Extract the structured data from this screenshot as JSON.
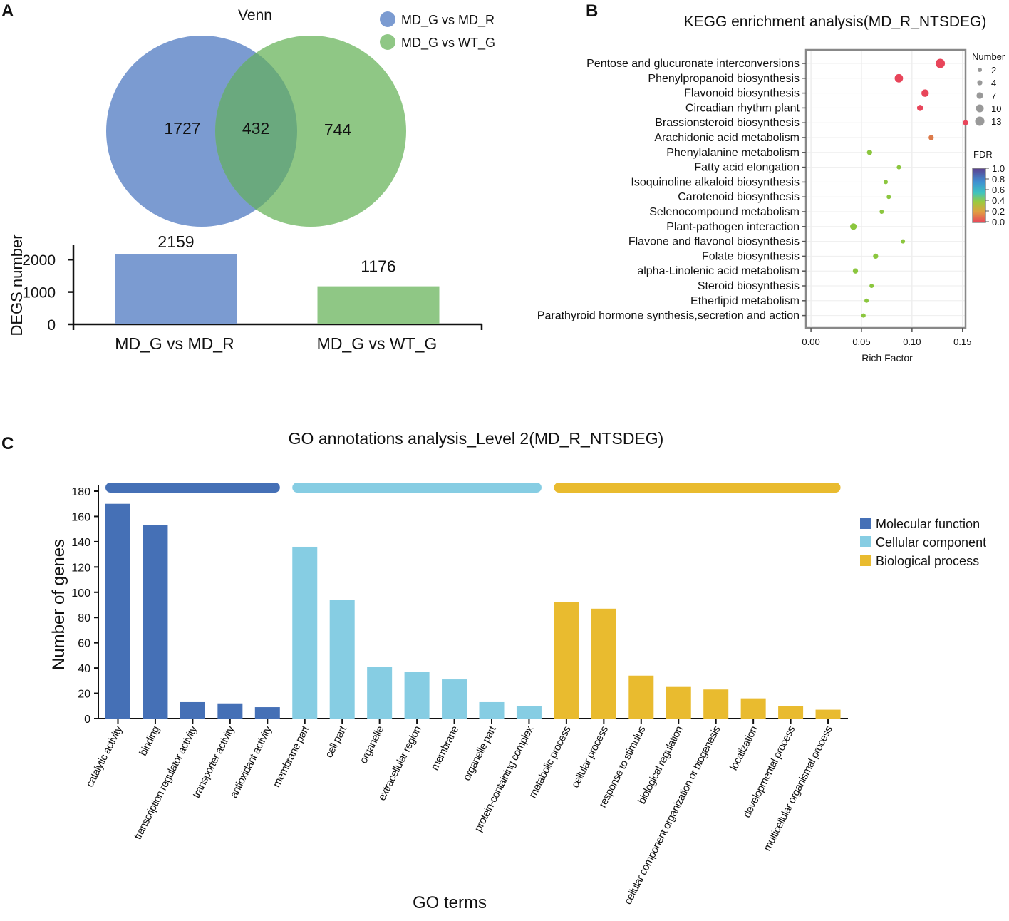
{
  "panels": {
    "a": "A",
    "b": "B",
    "c": "C"
  },
  "colors": {
    "blue": "#7b9bd1",
    "green": "#8fc785",
    "overlap": "#6aa97e",
    "mf": "#4570b6",
    "cc": "#86cde3",
    "bp": "#e9bb2f"
  },
  "chart_data": [
    {
      "type": "venn",
      "title": "Venn",
      "sets": [
        "MD_G vs MD_R",
        "MD_G vs WT_G"
      ],
      "regions": {
        "only_a": 1727,
        "both": 432,
        "only_b": 744
      }
    },
    {
      "type": "bar",
      "categories": [
        "MD_G vs MD_R",
        "MD_G vs WT_G"
      ],
      "values": [
        2159,
        1176
      ],
      "ylabel": "DEGS number",
      "yticks": [
        0,
        1000,
        2000
      ],
      "ylim": [
        0,
        2700
      ]
    },
    {
      "type": "scatter",
      "title": "KEGG enrichment analysis(MD_R_NTSDEG)",
      "xlabel": "Rich Factor",
      "xlim": [
        -0.005,
        0.153
      ],
      "xticks": [
        "0.00",
        "0.05",
        "0.10",
        "0.15"
      ],
      "size_legend_title": "Number",
      "size_legend": [
        2,
        4,
        7,
        10,
        13
      ],
      "color_legend_title": "FDR",
      "color_legend": [
        "1.0",
        "0.8",
        "0.6",
        "0.4",
        "0.2",
        "0.0"
      ],
      "terms": [
        {
          "name": "Pentose and glucuronate interconversions",
          "rich": 0.128,
          "number": 13,
          "fdr": 0.0
        },
        {
          "name": "Phenylpropanoid biosynthesis",
          "rich": 0.087,
          "number": 11,
          "fdr": 0.0
        },
        {
          "name": "Flavonoid biosynthesis",
          "rich": 0.113,
          "number": 9,
          "fdr": 0.0
        },
        {
          "name": "Circadian rhythm plant",
          "rich": 0.108,
          "number": 6,
          "fdr": 0.02
        },
        {
          "name": "Brassionsteroid biosynthesis",
          "rich": 0.153,
          "number": 4,
          "fdr": 0.03
        },
        {
          "name": "Arachidonic acid metabolism",
          "rich": 0.119,
          "number": 4,
          "fdr": 0.12
        },
        {
          "name": "Phenylalanine metabolism",
          "rich": 0.058,
          "number": 4,
          "fdr": 0.38
        },
        {
          "name": "Fatty acid elongation",
          "rich": 0.087,
          "number": 2,
          "fdr": 0.38
        },
        {
          "name": "Isoquinoline alkaloid biosynthesis",
          "rich": 0.074,
          "number": 2,
          "fdr": 0.38
        },
        {
          "name": "Carotenoid biosynthesis",
          "rich": 0.077,
          "number": 2,
          "fdr": 0.38
        },
        {
          "name": "Selenocompound metabolism",
          "rich": 0.07,
          "number": 2,
          "fdr": 0.38
        },
        {
          "name": "Plant-pathogen interaction",
          "rich": 0.042,
          "number": 7,
          "fdr": 0.4
        },
        {
          "name": "Flavone and flavonol biosynthesis",
          "rich": 0.091,
          "number": 2,
          "fdr": 0.4
        },
        {
          "name": "Folate biosynthesis",
          "rich": 0.064,
          "number": 4,
          "fdr": 0.4
        },
        {
          "name": "alpha-Linolenic acid metabolism",
          "rich": 0.044,
          "number": 4,
          "fdr": 0.4
        },
        {
          "name": "Steroid biosynthesis",
          "rich": 0.06,
          "number": 2,
          "fdr": 0.4
        },
        {
          "name": "Etherlipid metabolism",
          "rich": 0.055,
          "number": 2,
          "fdr": 0.4
        },
        {
          "name": "Parathyroid hormone synthesis,secretion and action",
          "rich": 0.052,
          "number": 2,
          "fdr": 0.4
        }
      ]
    },
    {
      "type": "bar",
      "title": "GO annotations analysis_Level 2(MD_R_NTSDEG)",
      "xlabel": "GO terms",
      "ylabel": "Number of genes",
      "ylim": [
        0,
        180
      ],
      "yticks": [
        0,
        20,
        40,
        60,
        80,
        100,
        120,
        140,
        160,
        180
      ],
      "groups": [
        {
          "name": "Molecular function",
          "color": "#4570b6",
          "count": 5
        },
        {
          "name": "Cellular component",
          "color": "#86cde3",
          "count": 7
        },
        {
          "name": "Biological process",
          "color": "#e9bb2f",
          "count": 8
        }
      ],
      "categories": [
        "catalytic activity",
        "binding",
        "transcription regulator activity",
        "transporter activity",
        "antioxidant activity",
        "membrane part",
        "cell part",
        "organelle",
        "extracellular region",
        "membrane",
        "organelle part",
        "protein-containing complex",
        "metabolic process",
        "cellular process",
        "response to stimulus",
        "biological regulation",
        "cellular component organization or biogenesis",
        "localization",
        "developmental process",
        "multicellular organismal process"
      ],
      "values": [
        170,
        153,
        13,
        12,
        9,
        136,
        94,
        41,
        37,
        31,
        13,
        10,
        92,
        87,
        34,
        25,
        23,
        16,
        10,
        7
      ]
    }
  ]
}
